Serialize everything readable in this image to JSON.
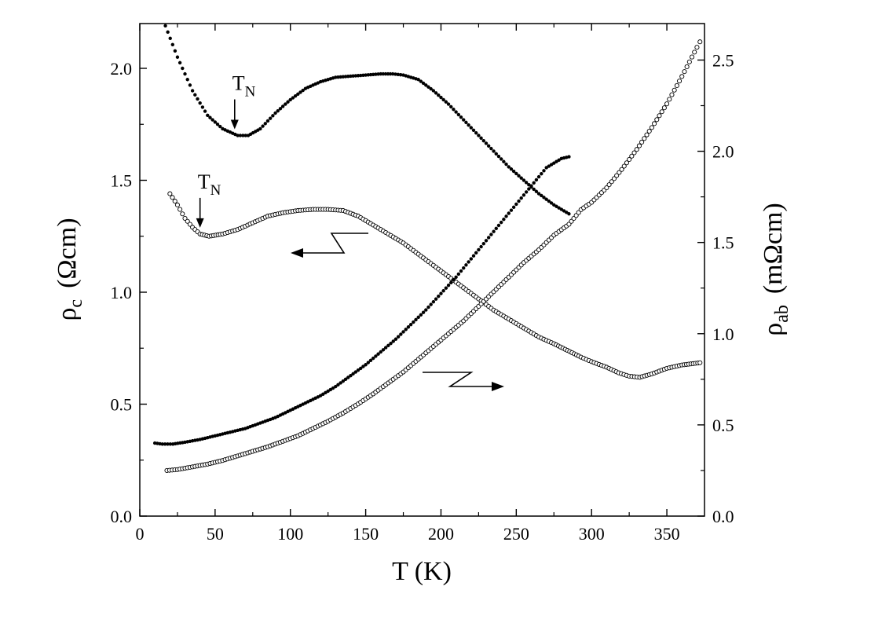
{
  "chart_data": {
    "type": "scatter",
    "xlabel": "T  (K)",
    "ylabel_left": {
      "symbol": "ρ",
      "subscript": "c",
      "unit": "(Ωcm)"
    },
    "ylabel_right": {
      "symbol": "ρ",
      "subscript": "ab",
      "unit": "(mΩcm)"
    },
    "xlim": [
      0,
      375
    ],
    "ylim_left": [
      0,
      2.2
    ],
    "ylim_right": [
      0,
      2.7
    ],
    "x_ticks": [
      "0",
      "50",
      "100",
      "150",
      "200",
      "250",
      "300",
      "350"
    ],
    "y_left_ticks": [
      "0.0",
      "0.5",
      "1.0",
      "1.5",
      "2.0"
    ],
    "y_right_ticks": [
      "0.0",
      "0.5",
      "1.0",
      "1.5",
      "2.0",
      "2.5"
    ],
    "grid": false,
    "annotations": [
      {
        "text": "T",
        "subscript": "N",
        "x": 63,
        "axis": "left",
        "y": 1.7
      },
      {
        "text": "T",
        "subscript": "N",
        "x": 40,
        "axis": "left",
        "y": 1.26
      }
    ],
    "series": [
      {
        "axis": "left",
        "marker": "filled",
        "points": [
          [
            17,
            2.19
          ],
          [
            25,
            2.05
          ],
          [
            35,
            1.9
          ],
          [
            45,
            1.79
          ],
          [
            55,
            1.73
          ],
          [
            65,
            1.7
          ],
          [
            72,
            1.7
          ],
          [
            80,
            1.73
          ],
          [
            90,
            1.8
          ],
          [
            100,
            1.86
          ],
          [
            110,
            1.91
          ],
          [
            120,
            1.94
          ],
          [
            130,
            1.96
          ],
          [
            140,
            1.965
          ],
          [
            150,
            1.97
          ],
          [
            160,
            1.975
          ],
          [
            168,
            1.975
          ],
          [
            175,
            1.97
          ],
          [
            185,
            1.95
          ],
          [
            195,
            1.9
          ],
          [
            205,
            1.84
          ],
          [
            215,
            1.77
          ],
          [
            225,
            1.7
          ],
          [
            235,
            1.63
          ],
          [
            245,
            1.56
          ],
          [
            255,
            1.5
          ],
          [
            265,
            1.44
          ],
          [
            275,
            1.39
          ],
          [
            285,
            1.35
          ]
        ]
      },
      {
        "axis": "left",
        "marker": "open",
        "points": [
          [
            20,
            1.44
          ],
          [
            25,
            1.39
          ],
          [
            30,
            1.33
          ],
          [
            35,
            1.29
          ],
          [
            40,
            1.26
          ],
          [
            46,
            1.25
          ],
          [
            55,
            1.26
          ],
          [
            65,
            1.28
          ],
          [
            75,
            1.31
          ],
          [
            85,
            1.34
          ],
          [
            95,
            1.355
          ],
          [
            105,
            1.365
          ],
          [
            115,
            1.37
          ],
          [
            125,
            1.37
          ],
          [
            135,
            1.365
          ],
          [
            145,
            1.34
          ],
          [
            155,
            1.3
          ],
          [
            165,
            1.26
          ],
          [
            175,
            1.22
          ],
          [
            185,
            1.17
          ],
          [
            195,
            1.12
          ],
          [
            205,
            1.07
          ],
          [
            215,
            1.02
          ],
          [
            225,
            0.97
          ],
          [
            235,
            0.92
          ],
          [
            245,
            0.88
          ],
          [
            255,
            0.84
          ],
          [
            265,
            0.8
          ],
          [
            275,
            0.77
          ],
          [
            287,
            0.73
          ],
          [
            293,
            0.71
          ],
          [
            300,
            0.69
          ],
          [
            310,
            0.665
          ],
          [
            318,
            0.64
          ],
          [
            325,
            0.625
          ],
          [
            332,
            0.62
          ],
          [
            340,
            0.635
          ],
          [
            350,
            0.66
          ],
          [
            360,
            0.675
          ],
          [
            372,
            0.685
          ]
        ]
      },
      {
        "axis": "right",
        "marker": "filled",
        "points": [
          [
            10,
            0.4
          ],
          [
            15,
            0.395
          ],
          [
            22,
            0.395
          ],
          [
            30,
            0.405
          ],
          [
            40,
            0.42
          ],
          [
            50,
            0.44
          ],
          [
            60,
            0.46
          ],
          [
            70,
            0.48
          ],
          [
            80,
            0.51
          ],
          [
            90,
            0.54
          ],
          [
            100,
            0.58
          ],
          [
            110,
            0.62
          ],
          [
            120,
            0.66
          ],
          [
            130,
            0.71
          ],
          [
            140,
            0.77
          ],
          [
            150,
            0.83
          ],
          [
            160,
            0.9
          ],
          [
            170,
            0.97
          ],
          [
            180,
            1.05
          ],
          [
            190,
            1.13
          ],
          [
            200,
            1.22
          ],
          [
            210,
            1.31
          ],
          [
            220,
            1.41
          ],
          [
            230,
            1.51
          ],
          [
            240,
            1.61
          ],
          [
            250,
            1.71
          ],
          [
            260,
            1.81
          ],
          [
            270,
            1.91
          ],
          [
            280,
            1.96
          ],
          [
            285,
            1.97
          ]
        ]
      },
      {
        "axis": "right",
        "marker": "open",
        "points": [
          [
            18,
            0.25
          ],
          [
            25,
            0.255
          ],
          [
            35,
            0.27
          ],
          [
            45,
            0.285
          ],
          [
            55,
            0.305
          ],
          [
            65,
            0.33
          ],
          [
            75,
            0.355
          ],
          [
            85,
            0.38
          ],
          [
            95,
            0.41
          ],
          [
            105,
            0.44
          ],
          [
            115,
            0.48
          ],
          [
            125,
            0.52
          ],
          [
            135,
            0.565
          ],
          [
            145,
            0.615
          ],
          [
            155,
            0.67
          ],
          [
            165,
            0.73
          ],
          [
            175,
            0.79
          ],
          [
            185,
            0.86
          ],
          [
            195,
            0.93
          ],
          [
            205,
            1.0
          ],
          [
            215,
            1.07
          ],
          [
            225,
            1.15
          ],
          [
            235,
            1.23
          ],
          [
            245,
            1.31
          ],
          [
            255,
            1.39
          ],
          [
            265,
            1.46
          ],
          [
            275,
            1.54
          ],
          [
            285,
            1.6
          ],
          [
            293,
            1.68
          ],
          [
            300,
            1.72
          ],
          [
            310,
            1.8
          ],
          [
            320,
            1.9
          ],
          [
            330,
            2.01
          ],
          [
            340,
            2.13
          ],
          [
            350,
            2.26
          ],
          [
            360,
            2.41
          ],
          [
            370,
            2.57
          ],
          [
            372,
            2.6
          ]
        ]
      }
    ]
  }
}
